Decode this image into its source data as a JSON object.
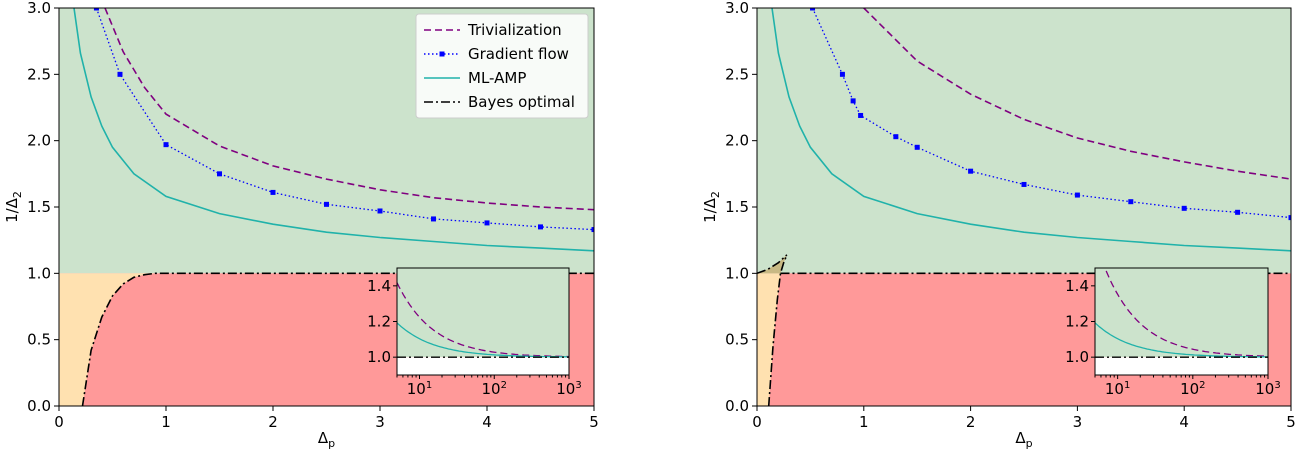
{
  "chart_data": [
    {
      "type": "line",
      "xlabel": "Δ",
      "xlabel_sub": "p",
      "ylabel": "1/Δ",
      "ylabel_sub": "2",
      "xlim": [
        0,
        5
      ],
      "ylim": [
        0,
        3
      ],
      "xticks": [
        "0",
        "1",
        "2",
        "3",
        "4",
        "5"
      ],
      "yticks": [
        "0.0",
        "0.5",
        "1.0",
        "1.5",
        "2.0",
        "2.5",
        "3.0"
      ],
      "legend": "top-right",
      "region_colors": {
        "upper": "#cce3cc",
        "lower": "#ff9999",
        "left": "#ffe1b0"
      },
      "series": [
        {
          "name": "Trivialization",
          "style": "dashed",
          "color": "#800080",
          "x": [
            0.43,
            0.6,
            0.8,
            1.0,
            1.5,
            2.0,
            2.5,
            3.0,
            3.5,
            4.0,
            4.5,
            5.0
          ],
          "y": [
            3.0,
            2.67,
            2.4,
            2.2,
            1.96,
            1.81,
            1.71,
            1.63,
            1.57,
            1.53,
            1.5,
            1.48
          ]
        },
        {
          "name": "Gradient flow",
          "style": "dotted-markers",
          "color": "#0000ff",
          "x": [
            0.35,
            0.57,
            1.0,
            1.5,
            2.0,
            2.5,
            3.0,
            3.5,
            4.0,
            4.5,
            5.0
          ],
          "y": [
            3.0,
            2.5,
            1.97,
            1.75,
            1.61,
            1.52,
            1.47,
            1.41,
            1.38,
            1.35,
            1.33
          ]
        },
        {
          "name": "ML-AMP",
          "style": "solid",
          "color": "#20b2aa",
          "x": [
            0.14,
            0.2,
            0.3,
            0.4,
            0.5,
            0.7,
            1.0,
            1.5,
            2.0,
            2.5,
            3.0,
            3.5,
            4.0,
            4.5,
            5.0
          ],
          "y": [
            3.0,
            2.66,
            2.33,
            2.11,
            1.95,
            1.75,
            1.58,
            1.45,
            1.37,
            1.31,
            1.27,
            1.24,
            1.21,
            1.19,
            1.17
          ]
        },
        {
          "name": "Bayes optimal",
          "style": "dashdot",
          "color": "#000000",
          "x": [
            0.22,
            0.3,
            0.4,
            0.5,
            0.6,
            0.7,
            0.8,
            0.9,
            1.0,
            5.0
          ],
          "y": [
            0.0,
            0.42,
            0.67,
            0.83,
            0.92,
            0.97,
            0.99,
            1.0,
            1.0,
            1.0
          ]
        }
      ],
      "inset": {
        "xscale": "log",
        "xlim": [
          5,
          1000
        ],
        "ylim": [
          0.9,
          1.5
        ],
        "xticks": [
          "10",
          "10",
          "10"
        ],
        "xtick_exp": [
          "1",
          "2",
          "3"
        ],
        "yticks": [
          "1.0",
          "1.2",
          "1.4"
        ]
      }
    },
    {
      "type": "line",
      "xlabel": "Δ",
      "xlabel_sub": "p",
      "ylabel": "1/Δ",
      "ylabel_sub": "2",
      "xlim": [
        0,
        5
      ],
      "ylim": [
        0,
        3
      ],
      "xticks": [
        "0",
        "1",
        "2",
        "3",
        "4",
        "5"
      ],
      "yticks": [
        "0.0",
        "0.5",
        "1.0",
        "1.5",
        "2.0",
        "2.5",
        "3.0"
      ],
      "region_colors": {
        "upper": "#cce3cc",
        "lower": "#ff9999",
        "left": "#ffe1b0"
      },
      "series": [
        {
          "name": "Trivialization",
          "style": "dashed",
          "color": "#800080",
          "x": [
            1.0,
            1.5,
            2.0,
            2.5,
            3.0,
            3.5,
            4.0,
            4.5,
            5.0
          ],
          "y": [
            3.0,
            2.6,
            2.35,
            2.16,
            2.02,
            1.92,
            1.84,
            1.77,
            1.71
          ]
        },
        {
          "name": "Gradient flow",
          "style": "dotted-markers",
          "color": "#0000ff",
          "x": [
            0.52,
            0.8,
            0.9,
            0.97,
            1.3,
            1.5,
            2.0,
            2.5,
            3.0,
            3.5,
            4.0,
            4.5,
            5.0
          ],
          "y": [
            3.0,
            2.5,
            2.3,
            2.19,
            2.03,
            1.95,
            1.77,
            1.67,
            1.59,
            1.54,
            1.49,
            1.46,
            1.42
          ]
        },
        {
          "name": "ML-AMP",
          "style": "solid",
          "color": "#20b2aa",
          "x": [
            0.14,
            0.2,
            0.3,
            0.4,
            0.5,
            0.7,
            1.0,
            1.5,
            2.0,
            2.5,
            3.0,
            3.5,
            4.0,
            4.5,
            5.0
          ],
          "y": [
            3.0,
            2.66,
            2.33,
            2.11,
            1.95,
            1.75,
            1.58,
            1.45,
            1.37,
            1.31,
            1.27,
            1.24,
            1.21,
            1.19,
            1.17
          ]
        },
        {
          "name": "Bayes optimal",
          "style": "dashdot",
          "color": "#000000",
          "x": [
            0.11,
            0.15,
            0.19,
            0.22,
            0.25,
            0.28
          ],
          "y": [
            0.0,
            0.45,
            0.8,
            1.0,
            1.08,
            1.14
          ]
        },
        {
          "name": "Bayes optimal",
          "style": "dashdot",
          "color": "#000000",
          "x": [
            0.0,
            0.1,
            0.2,
            0.28
          ],
          "y": [
            1.0,
            1.03,
            1.08,
            1.14
          ]
        },
        {
          "name": "Bayes optimal",
          "style": "dashdot",
          "color": "#000000",
          "x": [
            0.22,
            5.0
          ],
          "y": [
            1.0,
            1.0
          ]
        }
      ],
      "inset": {
        "xscale": "log",
        "xlim": [
          5,
          1000
        ],
        "ylim": [
          0.9,
          1.5
        ],
        "xticks": [
          "10",
          "10",
          "10"
        ],
        "xtick_exp": [
          "1",
          "2",
          "3"
        ],
        "yticks": [
          "1.0",
          "1.2",
          "1.4"
        ]
      }
    }
  ]
}
